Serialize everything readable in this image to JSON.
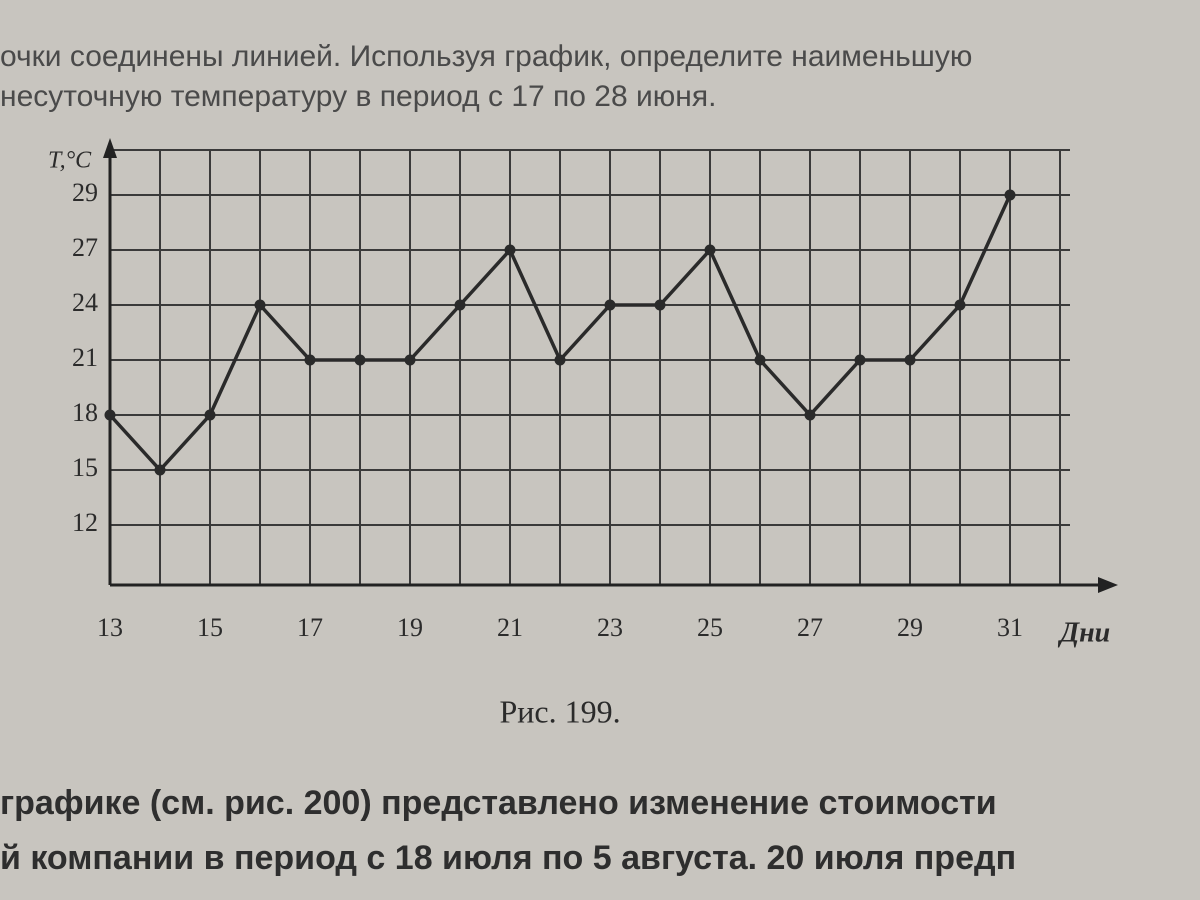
{
  "chart_data": {
    "type": "line",
    "text_lines": [
      "очки соединены линией. Используя график, определите наименьшую",
      "несуточную температуру в период с 17 по 28 июня."
    ],
    "y_label": "T,°C",
    "x_label": "Дни",
    "caption": "Рис. 199.",
    "bottom_lines": [
      "графике (см. рис. 200) представлено изменение стоимости",
      "й компании в период с 18 июля по 5 августа. 20 июля предп"
    ],
    "x": [
      13,
      14,
      15,
      16,
      17,
      18,
      19,
      20,
      21,
      22,
      23,
      24,
      25,
      26,
      27,
      28,
      29,
      30,
      31
    ],
    "series": [
      {
        "color": "#2a2a2a",
        "values": [
          18,
          15,
          18,
          24,
          21,
          21,
          21,
          24,
          27,
          21,
          24,
          24,
          27,
          21,
          18,
          21,
          21,
          24,
          29
        ]
      }
    ],
    "xlim": [
      13,
      33
    ],
    "xticks": [
      13,
      15,
      17,
      19,
      21,
      23,
      25,
      27,
      29,
      31
    ],
    "yticks": [
      12,
      15,
      18,
      21,
      24,
      27,
      29
    ],
    "grid": true
  }
}
